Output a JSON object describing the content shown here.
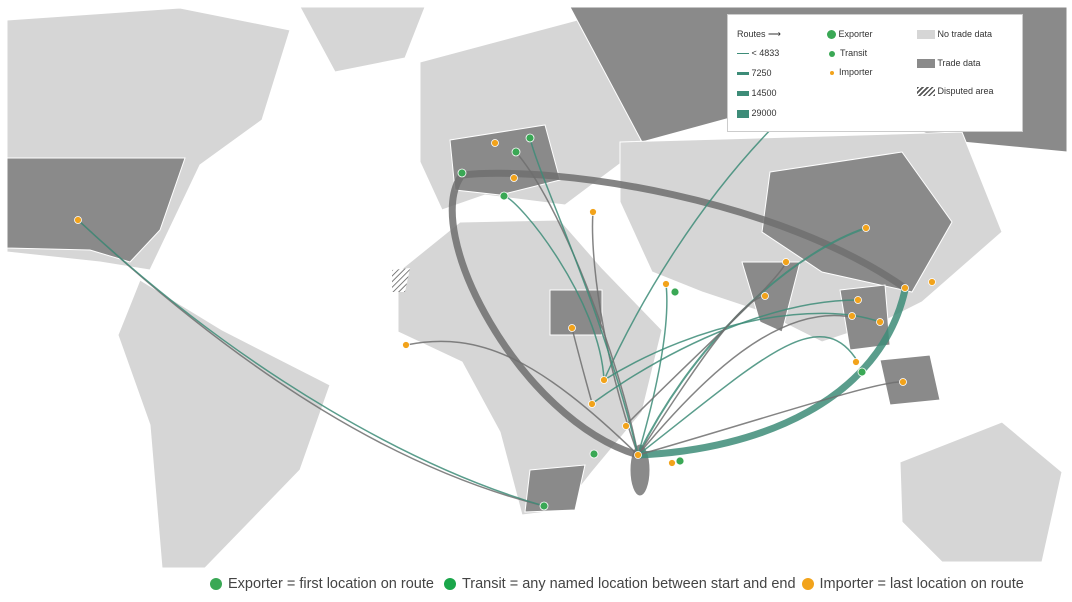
{
  "legend": {
    "routes_title": "Routes",
    "routes": [
      "< 4833",
      "7250",
      "14500",
      "29000"
    ],
    "points": [
      "Exporter",
      "Transit",
      "Importer"
    ],
    "areas": [
      "No trade data",
      "Trade data",
      "Disputed area"
    ]
  },
  "caption": [
    "Exporter = first location on route",
    "Transit = any named location between start and end",
    "Importer = last location on route"
  ]
}
